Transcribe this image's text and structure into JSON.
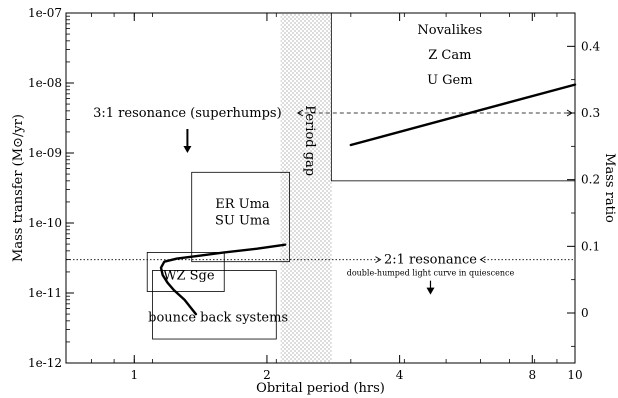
{
  "chart_data": {
    "type": "line",
    "xlabel": "Obrital  period (hrs)",
    "ylabel": "Mass transfer (M⊙/yr)",
    "y2label": "Mass ratio",
    "xscale": "log",
    "yscale": "log",
    "xlim": [
      0.7,
      10
    ],
    "ylim": [
      1e-12,
      1e-07
    ],
    "y2lim": [
      -0.075,
      0.45
    ],
    "grid": false,
    "x_ticks": [
      {
        "value": 1,
        "label": "1"
      },
      {
        "value": 2,
        "label": "2"
      },
      {
        "value": 4,
        "label": "4"
      },
      {
        "value": 8,
        "label": "8"
      },
      {
        "value": 10,
        "label": "10"
      }
    ],
    "y_ticks": [
      {
        "value": 1e-12,
        "label": "1e-12"
      },
      {
        "value": 1e-11,
        "label": "1e-11"
      },
      {
        "value": 1e-10,
        "label": "1e-10"
      },
      {
        "value": 1e-09,
        "label": "1e-09"
      },
      {
        "value": 1e-08,
        "label": "1e-08"
      },
      {
        "value": 1e-07,
        "label": "1e-07"
      }
    ],
    "y2_ticks": [
      {
        "value": 0,
        "label": "0"
      },
      {
        "value": 0.1,
        "label": "0.1"
      },
      {
        "value": 0.2,
        "label": "0.2"
      },
      {
        "value": 0.3,
        "label": "0.3"
      },
      {
        "value": 0.4,
        "label": "0.4"
      }
    ],
    "series": [
      {
        "name": "",
        "x": [
          3.1,
          10
        ],
        "y": [
          1.3e-09,
          9.5e-09
        ]
      },
      {
        "name": "",
        "x": [
          2.2,
          1.9,
          1.6,
          1.4,
          1.25,
          1.17,
          1.15,
          1.16,
          1.19,
          1.23,
          1.3,
          1.38
        ],
        "y": [
          4.9e-11,
          4.3e-11,
          3.8e-11,
          3.4e-11,
          3.1e-11,
          2.8e-11,
          2.3e-11,
          1.8e-11,
          1.4e-11,
          1.1e-11,
          8e-12,
          5e-12
        ]
      }
    ],
    "period_gap": {
      "label": "Period  gap",
      "x": [
        2.15,
        2.8
      ]
    },
    "regions": [
      {
        "name": "novalikes-box",
        "x": [
          2.8,
          10
        ],
        "y": [
          4e-10,
          1e-07
        ],
        "labels": [
          "Novalikes",
          "Z Cam",
          "U Gem"
        ]
      },
      {
        "name": "er-uma-box",
        "x": [
          1.35,
          2.25
        ],
        "y": [
          2.8e-11,
          5.3e-10
        ],
        "labels": [
          "ER Uma",
          "SU Uma"
        ]
      },
      {
        "name": "wz-sge-box",
        "x": [
          1.07,
          1.6
        ],
        "y": [
          1.05e-11,
          3.8e-11
        ],
        "labels": [
          "WZ Sge"
        ]
      },
      {
        "name": "bounce-box",
        "x": [
          1.1,
          2.1
        ],
        "y": [
          2.2e-12,
          2.1e-11
        ],
        "labels": [
          "bounce back systems"
        ]
      }
    ],
    "annotations": {
      "resonance_3_1": {
        "label": "3:1 resonance (superhumps)",
        "mass_ratio": 0.3
      },
      "resonance_2_1": {
        "label": "2:1 resonance",
        "note": "double-humped light curve in quiescence",
        "mass_ratio": 0.08
      }
    }
  }
}
